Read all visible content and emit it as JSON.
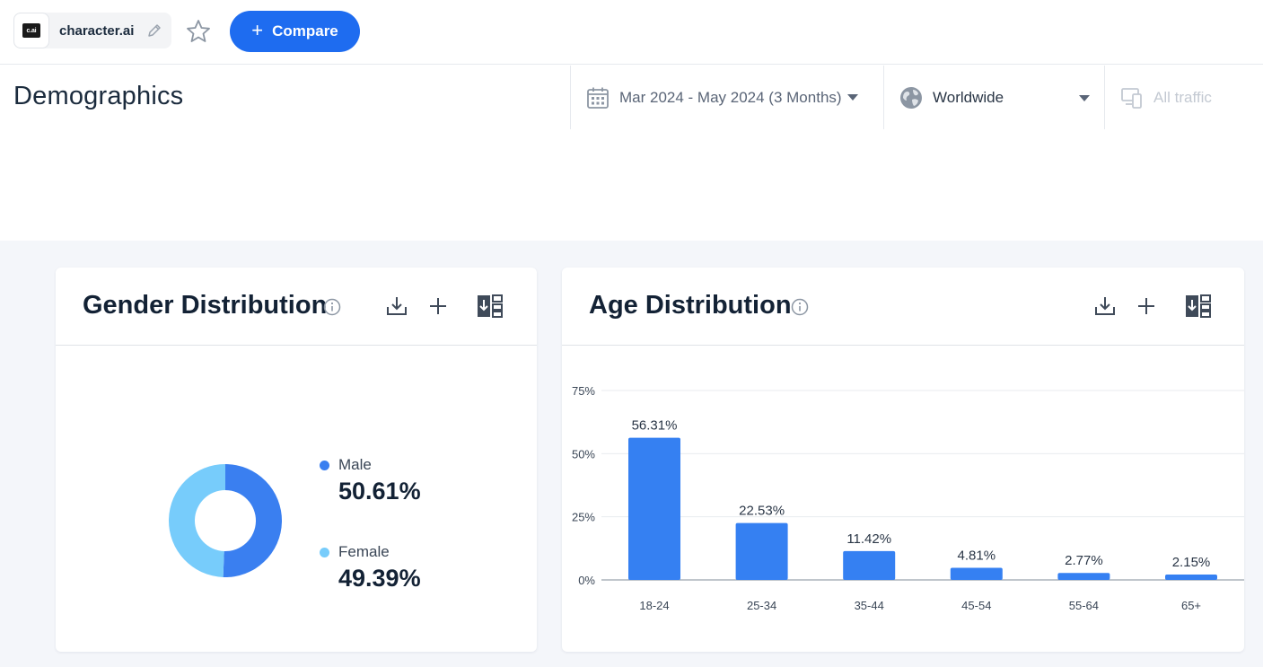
{
  "topbar": {
    "site_name": "character.ai",
    "favicon_text": "c.ai",
    "compare_label": "Compare"
  },
  "header": {
    "title": "Demographics",
    "date_range": "Mar 2024 - May 2024 (3 Months)",
    "region": "Worldwide",
    "traffic": "All traffic"
  },
  "gender": {
    "title": "Gender Distribution",
    "items": [
      {
        "name": "Male",
        "value": "50.61%",
        "color": "#3a7ff0"
      },
      {
        "name": "Female",
        "value": "49.39%",
        "color": "#77ccfb"
      }
    ]
  },
  "age": {
    "title": "Age Distribution"
  },
  "chart_data": [
    {
      "type": "pie",
      "title": "Gender Distribution",
      "categories": [
        "Male",
        "Female"
      ],
      "values": [
        50.61,
        49.39
      ],
      "colors": [
        "#3a7ff0",
        "#77ccfb"
      ],
      "donut": true,
      "legend": "right"
    },
    {
      "type": "bar",
      "title": "Age Distribution",
      "categories": [
        "18-24",
        "25-34",
        "35-44",
        "45-54",
        "55-64",
        "65+"
      ],
      "values": [
        56.31,
        22.53,
        11.42,
        4.81,
        2.77,
        2.15
      ],
      "value_labels": [
        "56.31%",
        "22.53%",
        "11.42%",
        "4.81%",
        "2.77%",
        "2.15%"
      ],
      "yticks": [
        0,
        25,
        50,
        75
      ],
      "ytick_labels": [
        "0%",
        "25%",
        "50%",
        "75%"
      ],
      "ylim": [
        0,
        75
      ],
      "grid": true,
      "color": "#3580f2"
    }
  ]
}
